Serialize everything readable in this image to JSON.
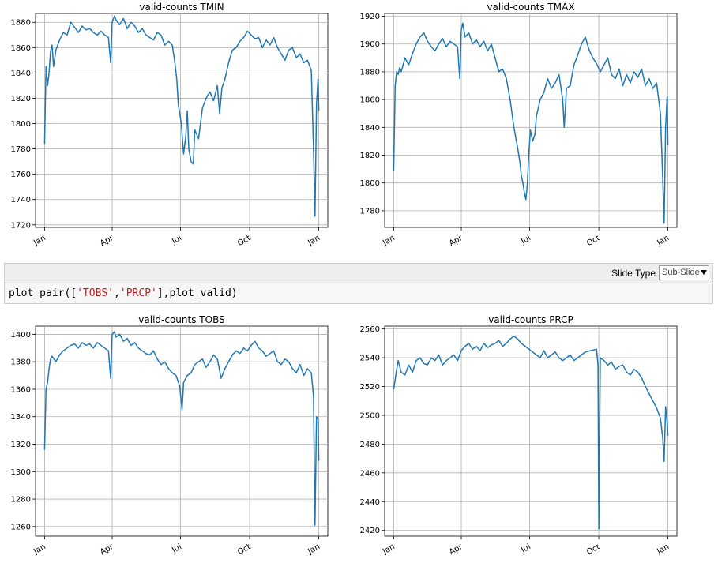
{
  "toolbar": {
    "slide_type_label": "Slide Type",
    "slide_type_value": "Sub-Slide"
  },
  "code_cell": {
    "prefix": "plot_pair([",
    "arg1": "'TOBS'",
    "sep": ",",
    "arg2": "'PRCP'",
    "suffix": "],plot_valid)"
  },
  "colors": {
    "line": "#1f77b4",
    "grid": "#b0b0b0"
  },
  "chart_data": [
    {
      "type": "line",
      "title": "valid-counts TMIN",
      "xticks": [
        "Jan",
        "Apr",
        "Jul",
        "Oct",
        "Jan"
      ],
      "xtick_days": [
        0,
        90,
        181,
        273,
        365
      ],
      "ylim": [
        1718,
        1887
      ],
      "yticks": [
        1720,
        1740,
        1760,
        1780,
        1800,
        1820,
        1840,
        1860,
        1880
      ],
      "grid": true,
      "series": [
        {
          "x": [
            0,
            2,
            4,
            6,
            8,
            10,
            12,
            15,
            20,
            25,
            30,
            35,
            40,
            45,
            50,
            55,
            60,
            65,
            70,
            75,
            80,
            85,
            88,
            90,
            93,
            95,
            100,
            105,
            110,
            115,
            120,
            125,
            130,
            135,
            140,
            145,
            150,
            155,
            160,
            165,
            170,
            173,
            176,
            178,
            180,
            182,
            185,
            188,
            190,
            192,
            195,
            198,
            200,
            205,
            210,
            215,
            220,
            225,
            230,
            233,
            236,
            240,
            245,
            250,
            255,
            260,
            265,
            270,
            275,
            280,
            285,
            290,
            295,
            300,
            305,
            310,
            315,
            320,
            325,
            330,
            335,
            340,
            345,
            350,
            355,
            358,
            360,
            362,
            364,
            365
          ],
          "y": [
            1784,
            1845,
            1830,
            1840,
            1857,
            1862,
            1845,
            1858,
            1866,
            1872,
            1870,
            1880,
            1876,
            1872,
            1877,
            1874,
            1875,
            1872,
            1870,
            1873,
            1870,
            1868,
            1848,
            1880,
            1885,
            1882,
            1878,
            1883,
            1875,
            1880,
            1877,
            1872,
            1875,
            1870,
            1868,
            1866,
            1872,
            1870,
            1862,
            1865,
            1862,
            1850,
            1835,
            1815,
            1808,
            1800,
            1776,
            1790,
            1810,
            1780,
            1770,
            1768,
            1795,
            1788,
            1812,
            1820,
            1825,
            1818,
            1830,
            1808,
            1828,
            1835,
            1848,
            1858,
            1860,
            1865,
            1868,
            1873,
            1870,
            1867,
            1868,
            1860,
            1866,
            1862,
            1868,
            1860,
            1855,
            1850,
            1858,
            1860,
            1852,
            1855,
            1848,
            1850,
            1842,
            1780,
            1727,
            1815,
            1835,
            1810
          ]
        }
      ]
    },
    {
      "type": "line",
      "title": "valid-counts TMAX",
      "xticks": [
        "Jan",
        "Apr",
        "Jul",
        "Oct",
        "Jan"
      ],
      "xtick_days": [
        0,
        90,
        181,
        273,
        365
      ],
      "ylim": [
        1768,
        1922
      ],
      "yticks": [
        1780,
        1800,
        1820,
        1840,
        1860,
        1880,
        1900,
        1920
      ],
      "grid": true,
      "series": [
        {
          "x": [
            0,
            2,
            4,
            6,
            8,
            10,
            15,
            20,
            25,
            30,
            35,
            40,
            45,
            50,
            55,
            60,
            65,
            70,
            75,
            80,
            85,
            88,
            90,
            92,
            95,
            100,
            105,
            110,
            115,
            120,
            125,
            130,
            135,
            140,
            145,
            150,
            155,
            160,
            165,
            168,
            170,
            172,
            174,
            176,
            178,
            180,
            182,
            185,
            188,
            190,
            195,
            200,
            205,
            210,
            215,
            220,
            225,
            227,
            230,
            235,
            240,
            245,
            250,
            255,
            260,
            265,
            270,
            275,
            280,
            285,
            290,
            295,
            300,
            305,
            310,
            315,
            320,
            325,
            330,
            335,
            340,
            345,
            350,
            355,
            358,
            360,
            362,
            364,
            365
          ],
          "y": [
            1809,
            1870,
            1880,
            1878,
            1883,
            1880,
            1890,
            1885,
            1893,
            1900,
            1905,
            1908,
            1902,
            1898,
            1895,
            1900,
            1904,
            1898,
            1902,
            1900,
            1898,
            1875,
            1910,
            1915,
            1905,
            1908,
            1900,
            1903,
            1898,
            1902,
            1895,
            1900,
            1890,
            1880,
            1882,
            1875,
            1860,
            1840,
            1825,
            1815,
            1805,
            1800,
            1793,
            1788,
            1800,
            1822,
            1838,
            1830,
            1835,
            1848,
            1860,
            1865,
            1875,
            1868,
            1872,
            1878,
            1860,
            1840,
            1868,
            1870,
            1885,
            1892,
            1900,
            1905,
            1896,
            1890,
            1886,
            1880,
            1885,
            1890,
            1878,
            1875,
            1882,
            1870,
            1878,
            1872,
            1880,
            1876,
            1882,
            1870,
            1875,
            1868,
            1872,
            1850,
            1805,
            1771,
            1840,
            1862,
            1827
          ]
        }
      ]
    },
    {
      "type": "line",
      "title": "valid-counts TOBS",
      "xticks": [
        "Jan",
        "Apr",
        "Jul",
        "Oct",
        "Jan"
      ],
      "xtick_days": [
        0,
        90,
        181,
        273,
        365
      ],
      "ylim": [
        1253,
        1406
      ],
      "yticks": [
        1260,
        1280,
        1300,
        1320,
        1340,
        1360,
        1380,
        1400
      ],
      "grid": true,
      "series": [
        {
          "x": [
            0,
            2,
            4,
            6,
            8,
            10,
            15,
            20,
            25,
            30,
            35,
            40,
            45,
            50,
            55,
            60,
            65,
            70,
            75,
            80,
            85,
            88,
            90,
            93,
            95,
            100,
            105,
            110,
            115,
            120,
            125,
            130,
            135,
            140,
            145,
            150,
            155,
            160,
            165,
            170,
            175,
            180,
            183,
            185,
            190,
            195,
            200,
            205,
            210,
            215,
            220,
            225,
            230,
            235,
            240,
            245,
            250,
            255,
            260,
            265,
            270,
            275,
            280,
            285,
            290,
            295,
            300,
            305,
            310,
            315,
            320,
            325,
            330,
            335,
            340,
            345,
            350,
            355,
            358,
            360,
            362,
            364,
            365
          ],
          "y": [
            1316,
            1360,
            1365,
            1375,
            1382,
            1384,
            1380,
            1385,
            1388,
            1390,
            1392,
            1393,
            1390,
            1394,
            1392,
            1393,
            1390,
            1394,
            1392,
            1390,
            1388,
            1368,
            1400,
            1402,
            1398,
            1400,
            1395,
            1397,
            1392,
            1394,
            1390,
            1388,
            1386,
            1385,
            1388,
            1382,
            1378,
            1380,
            1375,
            1372,
            1370,
            1362,
            1345,
            1365,
            1370,
            1372,
            1378,
            1380,
            1382,
            1376,
            1380,
            1385,
            1382,
            1368,
            1375,
            1380,
            1385,
            1388,
            1386,
            1390,
            1388,
            1392,
            1395,
            1390,
            1388,
            1384,
            1386,
            1388,
            1380,
            1378,
            1382,
            1380,
            1375,
            1372,
            1378,
            1370,
            1375,
            1372,
            1355,
            1261,
            1340,
            1338,
            1308
          ]
        }
      ]
    },
    {
      "type": "line",
      "title": "valid-counts PRCP",
      "xticks": [
        "Jan",
        "Apr",
        "Jul",
        "Oct",
        "Jan"
      ],
      "xtick_days": [
        0,
        90,
        181,
        273,
        365
      ],
      "ylim": [
        2416,
        2562
      ],
      "yticks": [
        2420,
        2440,
        2460,
        2480,
        2500,
        2520,
        2540,
        2560
      ],
      "grid": true,
      "series": [
        {
          "x": [
            0,
            2,
            4,
            6,
            8,
            10,
            15,
            20,
            25,
            30,
            35,
            40,
            45,
            50,
            55,
            60,
            65,
            70,
            75,
            80,
            85,
            90,
            95,
            100,
            105,
            110,
            115,
            120,
            125,
            130,
            135,
            140,
            145,
            150,
            155,
            160,
            165,
            170,
            175,
            180,
            185,
            190,
            195,
            200,
            205,
            210,
            215,
            220,
            225,
            230,
            235,
            240,
            245,
            250,
            255,
            270,
            272,
            273,
            275,
            280,
            285,
            290,
            295,
            300,
            305,
            310,
            315,
            320,
            325,
            330,
            335,
            340,
            345,
            350,
            355,
            358,
            360,
            362,
            364,
            365
          ],
          "y": [
            2518,
            2525,
            2532,
            2538,
            2534,
            2530,
            2528,
            2535,
            2530,
            2538,
            2540,
            2536,
            2535,
            2540,
            2538,
            2542,
            2535,
            2538,
            2540,
            2542,
            2538,
            2545,
            2548,
            2550,
            2546,
            2548,
            2545,
            2550,
            2547,
            2549,
            2550,
            2552,
            2548,
            2550,
            2553,
            2555,
            2553,
            2550,
            2548,
            2546,
            2544,
            2542,
            2540,
            2545,
            2540,
            2542,
            2544,
            2540,
            2538,
            2540,
            2542,
            2538,
            2540,
            2542,
            2544,
            2546,
            2535,
            2421,
            2540,
            2538,
            2535,
            2537,
            2532,
            2534,
            2535,
            2530,
            2528,
            2532,
            2530,
            2526,
            2520,
            2515,
            2510,
            2505,
            2498,
            2485,
            2468,
            2506,
            2495,
            2486
          ]
        }
      ]
    }
  ]
}
